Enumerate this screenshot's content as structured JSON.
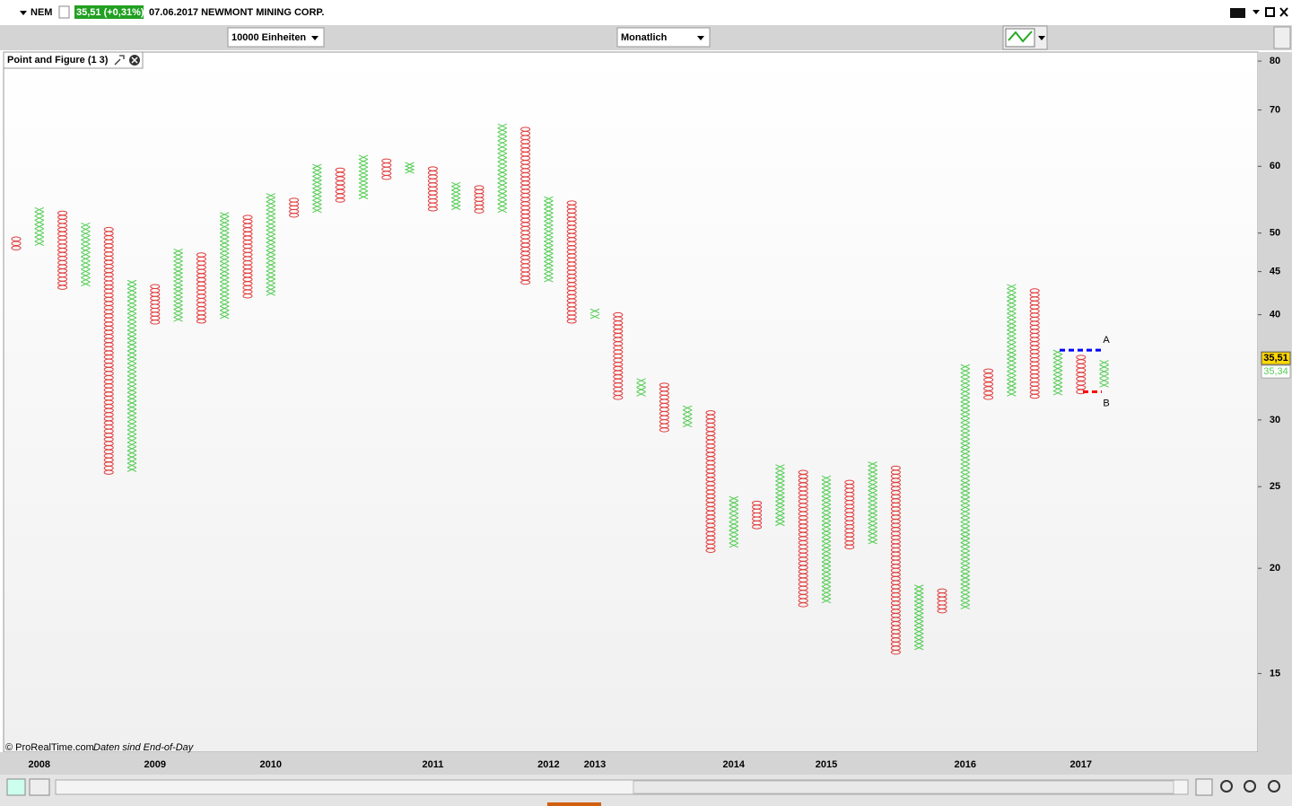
{
  "header": {
    "symbol": "NEM",
    "price_change": "35,51 (+0,31%)",
    "description": "07.06.2017 NEWMONT MINING CORP."
  },
  "toolbar": {
    "units": "10000 Einheiten",
    "period": "Monatlich"
  },
  "footer": {
    "copyright": "© ProRealTime.com",
    "note": "Daten sind End-of-Day"
  },
  "chart_data": {
    "type": "point-and-figure",
    "title": "Point and Figure (1 3)",
    "log_scale": true,
    "x_color": "#55cc55",
    "o_color": "#e03c3c",
    "ylim": [
      12.1,
      82
    ],
    "yticks": [
      15,
      20,
      25,
      30,
      40,
      45,
      50,
      60,
      70,
      80
    ],
    "categories": [
      null,
      "2008",
      null,
      null,
      null,
      null,
      "2009",
      null,
      null,
      null,
      null,
      "2010",
      null,
      null,
      null,
      null,
      null,
      null,
      "2011",
      null,
      null,
      null,
      null,
      "2012",
      null,
      "2013",
      null,
      null,
      null,
      null,
      null,
      "2014",
      null,
      null,
      null,
      "2015",
      null,
      null,
      null,
      null,
      null,
      "2016",
      null,
      null,
      null,
      null,
      "2017",
      null
    ],
    "columns": [
      {
        "type": "O",
        "high": 49.2,
        "low": 48.0
      },
      {
        "type": "X",
        "high": 53.3,
        "low": 48.6
      },
      {
        "type": "O",
        "high": 52.8,
        "low": 43.1
      },
      {
        "type": "X",
        "high": 51.1,
        "low": 43.5
      },
      {
        "type": "O",
        "high": 50.5,
        "low": 26.0
      },
      {
        "type": "X",
        "high": 43.7,
        "low": 26.2
      },
      {
        "type": "O",
        "high": 43.2,
        "low": 39.2
      },
      {
        "type": "X",
        "high": 47.6,
        "low": 39.5
      },
      {
        "type": "O",
        "high": 47.1,
        "low": 39.3
      },
      {
        "type": "X",
        "high": 52.6,
        "low": 39.8
      },
      {
        "type": "O",
        "high": 52.2,
        "low": 42.1
      },
      {
        "type": "X",
        "high": 55.4,
        "low": 42.4
      },
      {
        "type": "O",
        "high": 54.7,
        "low": 52.5
      },
      {
        "type": "X",
        "high": 60.0,
        "low": 53.2
      },
      {
        "type": "O",
        "high": 59.4,
        "low": 54.7
      },
      {
        "type": "X",
        "high": 61.5,
        "low": 55.2
      },
      {
        "type": "O",
        "high": 60.9,
        "low": 58.2
      },
      {
        "type": "X",
        "high": 60.3,
        "low": 59.2
      },
      {
        "type": "O",
        "high": 59.6,
        "low": 53.4
      },
      {
        "type": "X",
        "high": 57.1,
        "low": 53.6
      },
      {
        "type": "O",
        "high": 56.6,
        "low": 53.1
      },
      {
        "type": "X",
        "high": 67.0,
        "low": 53.2
      },
      {
        "type": "O",
        "high": 66.4,
        "low": 43.7
      },
      {
        "type": "X",
        "high": 54.9,
        "low": 44.0
      },
      {
        "type": "O",
        "high": 54.3,
        "low": 39.3
      },
      {
        "type": "X",
        "high": 40.4,
        "low": 39.8
      },
      {
        "type": "O",
        "high": 40.0,
        "low": 31.9
      },
      {
        "type": "X",
        "high": 33.4,
        "low": 32.2
      },
      {
        "type": "O",
        "high": 33.0,
        "low": 29.2
      },
      {
        "type": "X",
        "high": 31.0,
        "low": 29.6
      },
      {
        "type": "O",
        "high": 30.6,
        "low": 21.0
      },
      {
        "type": "X",
        "high": 24.2,
        "low": 21.3
      },
      {
        "type": "O",
        "high": 23.9,
        "low": 22.4
      },
      {
        "type": "X",
        "high": 26.4,
        "low": 22.6
      },
      {
        "type": "O",
        "high": 26.0,
        "low": 18.1
      },
      {
        "type": "X",
        "high": 25.6,
        "low": 18.3
      },
      {
        "type": "O",
        "high": 25.3,
        "low": 21.2
      },
      {
        "type": "X",
        "high": 26.6,
        "low": 21.5
      },
      {
        "type": "O",
        "high": 26.3,
        "low": 15.9
      },
      {
        "type": "X",
        "high": 19.0,
        "low": 16.1
      },
      {
        "type": "O",
        "high": 18.8,
        "low": 17.8
      },
      {
        "type": "X",
        "high": 34.7,
        "low": 18.0
      },
      {
        "type": "O",
        "high": 34.3,
        "low": 31.9
      },
      {
        "type": "X",
        "high": 43.2,
        "low": 32.2
      },
      {
        "type": "O",
        "high": 42.7,
        "low": 32.0
      },
      {
        "type": "X",
        "high": 36.1,
        "low": 32.3
      },
      {
        "type": "O",
        "high": 35.6,
        "low": 32.4
      },
      {
        "type": "X",
        "high": 35.1,
        "low": 33.0
      }
    ],
    "annotations": [
      {
        "label": "A",
        "value": 36.3,
        "color": "#0000ff"
      },
      {
        "label": "B",
        "value": 32.4,
        "color": "#ff0000"
      }
    ],
    "last_price": {
      "value": 35.51,
      "label": "35,51"
    },
    "last_x_price": {
      "value": 35.34,
      "label": "35,34"
    }
  }
}
